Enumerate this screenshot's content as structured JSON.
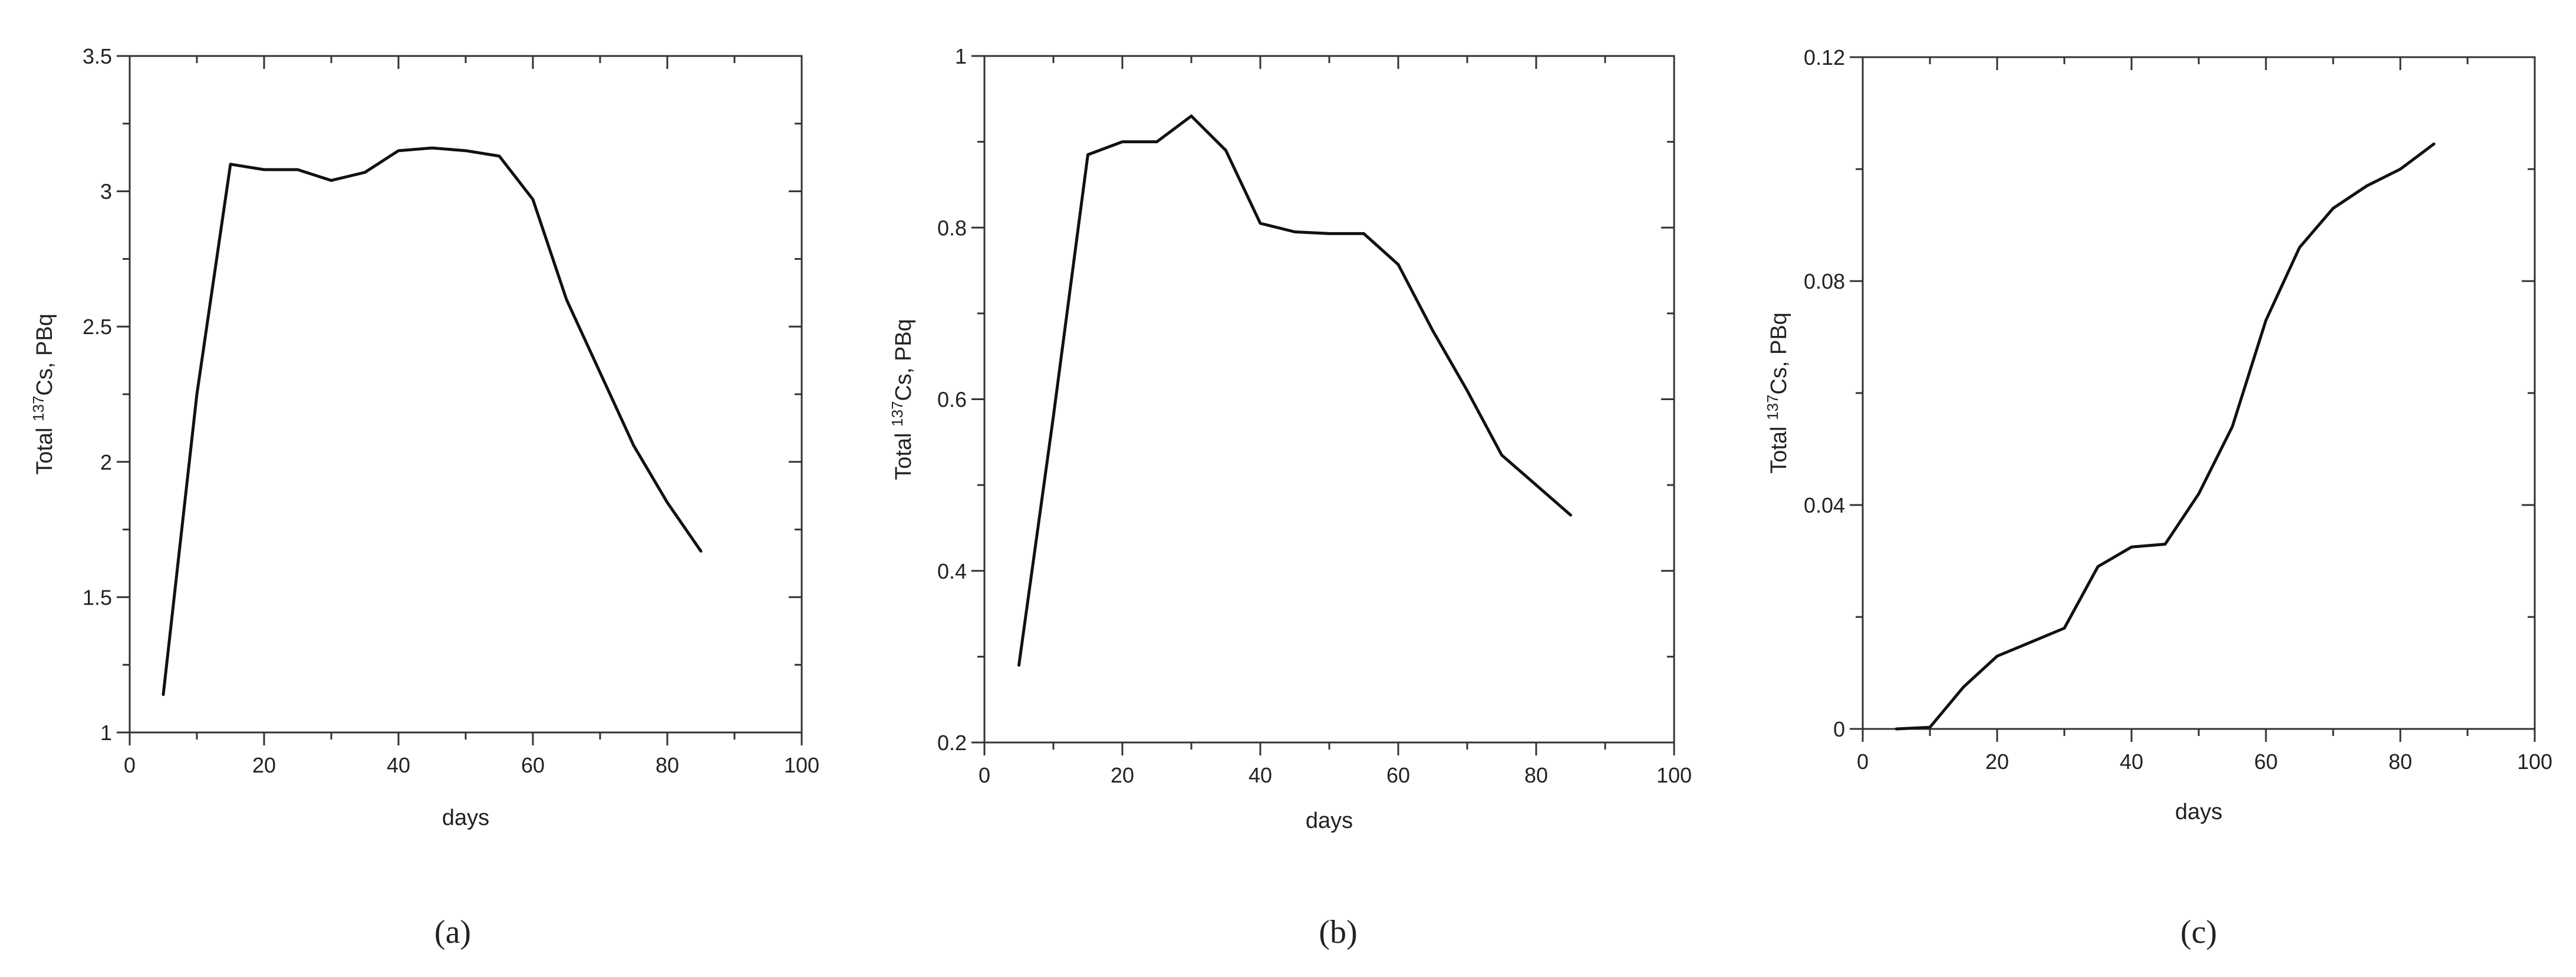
{
  "chart_data": [
    {
      "type": "line",
      "panel_label": "(a)",
      "xlabel": "days",
      "ylabel_prefix": "Total ",
      "ylabel_sup": "137",
      "ylabel_suffix": "Cs, PBq",
      "xlim": [
        0,
        100
      ],
      "ylim": [
        1,
        3.5
      ],
      "xticks": [
        0,
        20,
        40,
        60,
        80,
        100
      ],
      "xtick_labels": [
        "0",
        "20",
        "40",
        "60",
        "80",
        "100"
      ],
      "yticks": [
        1,
        1.5,
        2,
        2.5,
        3,
        3.5
      ],
      "ytick_labels": [
        "1",
        "1.5",
        "2",
        "2.5",
        "3",
        "3.5"
      ],
      "x": [
        5,
        10,
        15,
        20,
        25,
        30,
        35,
        40,
        45,
        50,
        55,
        60,
        65,
        70,
        75,
        80,
        85
      ],
      "y": [
        1.14,
        2.25,
        3.1,
        3.08,
        3.08,
        3.04,
        3.07,
        3.15,
        3.16,
        3.15,
        3.13,
        2.97,
        2.6,
        2.33,
        2.06,
        1.85,
        1.67
      ]
    },
    {
      "type": "line",
      "panel_label": "(b)",
      "xlabel": "days",
      "ylabel_prefix": "Total ",
      "ylabel_sup": "137",
      "ylabel_suffix": "Cs, PBq",
      "xlim": [
        0,
        100
      ],
      "ylim": [
        0.2,
        1
      ],
      "xticks": [
        0,
        20,
        40,
        60,
        80,
        100
      ],
      "xtick_labels": [
        "0",
        "20",
        "40",
        "60",
        "80",
        "100"
      ],
      "yticks": [
        0.2,
        0.4,
        0.6,
        0.8,
        1
      ],
      "ytick_labels": [
        "0.2",
        "0.4",
        "0.6",
        "0.8",
        "1"
      ],
      "x": [
        5,
        10,
        15,
        20,
        25,
        30,
        35,
        40,
        45,
        50,
        55,
        60,
        65,
        70,
        75,
        80,
        85
      ],
      "y": [
        0.29,
        0.58,
        0.885,
        0.9,
        0.9,
        0.93,
        0.89,
        0.805,
        0.795,
        0.793,
        0.793,
        0.757,
        0.68,
        0.61,
        0.535,
        0.5,
        0.465
      ]
    },
    {
      "type": "line",
      "panel_label": "(c)",
      "xlabel": "days",
      "ylabel_prefix": "Total ",
      "ylabel_sup": "137",
      "ylabel_suffix": "Cs, PBq",
      "xlim": [
        0,
        100
      ],
      "ylim": [
        0,
        0.12
      ],
      "xticks": [
        0,
        20,
        40,
        60,
        80,
        100
      ],
      "xtick_labels": [
        "0",
        "20",
        "40",
        "60",
        "80",
        "100"
      ],
      "yticks": [
        0,
        0.04,
        0.08,
        0.12
      ],
      "ytick_labels": [
        "0",
        "0.04",
        "0.08",
        "0.12"
      ],
      "x": [
        5,
        10,
        15,
        20,
        25,
        30,
        35,
        40,
        45,
        50,
        55,
        60,
        65,
        70,
        75,
        80,
        85
      ],
      "y": [
        0,
        0.0003,
        0.0075,
        0.013,
        0.0155,
        0.018,
        0.029,
        0.0325,
        0.033,
        0.042,
        0.054,
        0.073,
        0.086,
        0.093,
        0.097,
        0.1,
        0.1045
      ]
    }
  ]
}
